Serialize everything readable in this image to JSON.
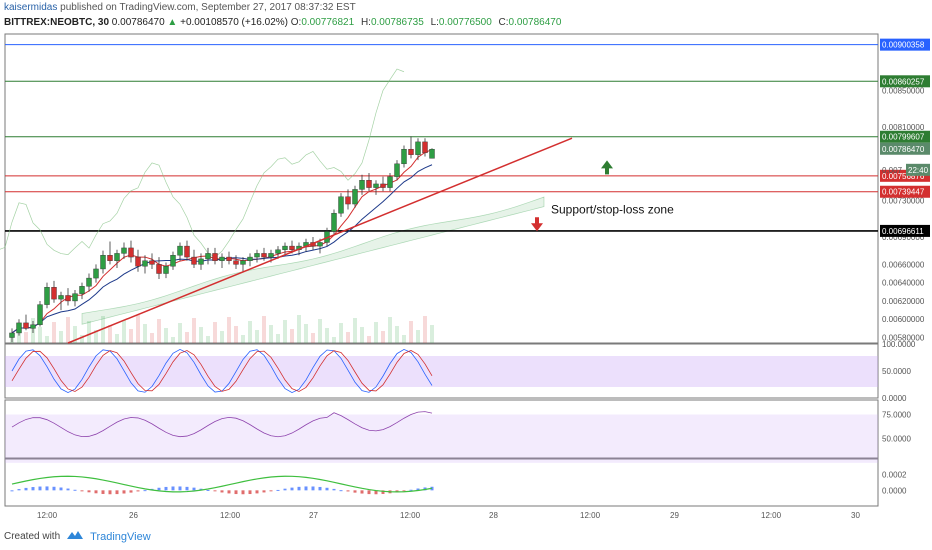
{
  "header": {
    "author": "kaisermidas",
    "published": "published on TradingView.com, September 27, 2017 08:37:32 EST",
    "symbol": "BITTREX:NEOBTC, 30",
    "last": "0.00786470",
    "change_arrow": "▲",
    "change": "+0.00108570 (+16.02%)",
    "o_label": "O:",
    "o": "0.00776821",
    "h_label": "H:",
    "h": "0.00786735",
    "l_label": "L:",
    "l": "0.00776500",
    "c_label": "C:",
    "c": "0.00786470"
  },
  "footer": {
    "created_with": "Created with",
    "brand": "TradingView"
  },
  "chart_data": {
    "type": "candlestick",
    "colors": {
      "up": "#2e9e44",
      "down": "#d32f2f",
      "accent": "#2962ff",
      "support_line": "#000000",
      "resistance_line": "#d32f2f",
      "target_line": "#2e7d32"
    },
    "price_axis": {
      "ylim": [
        0.00574,
        0.00912
      ],
      "ticks": [
        "0.00580000",
        "0.00600000",
        "0.00620000",
        "0.00640000",
        "0.00660000",
        "0.00690000",
        "0.00730000",
        "0.00810000",
        "0.00850000"
      ],
      "tick_values": [
        0.0058,
        0.006,
        0.0062,
        0.0064,
        0.0066,
        0.0069,
        0.0073,
        0.0081,
        0.0085
      ]
    },
    "x_axis": {
      "ticks": [
        "12:00",
        "26",
        "12:00",
        "27",
        "12:00",
        "28",
        "12:00",
        "29",
        "12:00",
        "30"
      ]
    },
    "horizontal_levels": [
      {
        "value": 0.00900358,
        "label": "0.00900358",
        "color": "#2962ff"
      },
      {
        "value": 0.00860257,
        "label": "0.00860257",
        "color": "#2e7d32"
      },
      {
        "value": 0.00799607,
        "label": "0.00799607",
        "color": "#2e7d32"
      },
      {
        "value": 0.00756876,
        "label": "0.00756876",
        "color": "#d32f2f"
      },
      {
        "value": 0.00739447,
        "label": "0.00739447",
        "color": "#d32f2f"
      },
      {
        "value": 0.00696611,
        "label": "0.00696611",
        "color": "#000000"
      }
    ],
    "last_price_tag": {
      "value": 0.0078647,
      "label": "0.00786470"
    },
    "countdown_tag": {
      "value": 0.0077,
      "prefix": "0.007",
      "timer": "22:40"
    },
    "trendline": {
      "from": {
        "x_index": 8,
        "y": 0.00574
      },
      "to": {
        "x_index": 80,
        "y": 0.00798
      }
    },
    "annotations": [
      {
        "text": "Support/stop-loss zone",
        "x_index": 77,
        "y": 0.0072
      },
      {
        "kind": "arrow-up",
        "color": "#2e7d32",
        "x_index": 85,
        "y": 0.00765
      },
      {
        "kind": "arrow-down",
        "color": "#d32f2f",
        "x_index": 75,
        "y": 0.00705
      }
    ],
    "candles": [
      [
        0.0058,
        0.0059,
        0.00575,
        0.00585
      ],
      [
        0.00585,
        0.006,
        0.00582,
        0.00596
      ],
      [
        0.00596,
        0.00605,
        0.00588,
        0.0059
      ],
      [
        0.0059,
        0.00598,
        0.00585,
        0.00594
      ],
      [
        0.00594,
        0.0062,
        0.00592,
        0.00616
      ],
      [
        0.00616,
        0.0064,
        0.00612,
        0.00635
      ],
      [
        0.00635,
        0.00642,
        0.00618,
        0.00622
      ],
      [
        0.00622,
        0.0063,
        0.0061,
        0.00626
      ],
      [
        0.00626,
        0.00634,
        0.00615,
        0.0062
      ],
      [
        0.0062,
        0.00632,
        0.00614,
        0.00628
      ],
      [
        0.00628,
        0.0064,
        0.00622,
        0.00636
      ],
      [
        0.00636,
        0.0065,
        0.0063,
        0.00645
      ],
      [
        0.00645,
        0.0066,
        0.0064,
        0.00655
      ],
      [
        0.00655,
        0.00675,
        0.0065,
        0.0067
      ],
      [
        0.0067,
        0.00685,
        0.0066,
        0.00664
      ],
      [
        0.00664,
        0.00676,
        0.00656,
        0.00672
      ],
      [
        0.00672,
        0.00684,
        0.00666,
        0.00678
      ],
      [
        0.00678,
        0.00686,
        0.00662,
        0.00668
      ],
      [
        0.00668,
        0.00676,
        0.00652,
        0.00658
      ],
      [
        0.00658,
        0.0067,
        0.0065,
        0.00664
      ],
      [
        0.00664,
        0.00672,
        0.00655,
        0.0066
      ],
      [
        0.0066,
        0.00668,
        0.00644,
        0.0065
      ],
      [
        0.0065,
        0.00662,
        0.00645,
        0.00658
      ],
      [
        0.00658,
        0.00674,
        0.00654,
        0.0067
      ],
      [
        0.0067,
        0.00684,
        0.00664,
        0.0068
      ],
      [
        0.0068,
        0.00686,
        0.00664,
        0.00668
      ],
      [
        0.00668,
        0.00676,
        0.00656,
        0.0066
      ],
      [
        0.0066,
        0.00672,
        0.00654,
        0.00666
      ],
      [
        0.00666,
        0.00678,
        0.0066,
        0.00672
      ],
      [
        0.00672,
        0.00678,
        0.0066,
        0.00664
      ],
      [
        0.00664,
        0.00672,
        0.00656,
        0.00668
      ],
      [
        0.00668,
        0.00674,
        0.0066,
        0.00664
      ],
      [
        0.00664,
        0.0067,
        0.00655,
        0.0066
      ],
      [
        0.0066,
        0.00668,
        0.00652,
        0.00664
      ],
      [
        0.00664,
        0.00672,
        0.00658,
        0.00668
      ],
      [
        0.00668,
        0.00676,
        0.00662,
        0.00672
      ],
      [
        0.00672,
        0.00678,
        0.00664,
        0.00668
      ],
      [
        0.00668,
        0.00676,
        0.00662,
        0.00672
      ],
      [
        0.00672,
        0.0068,
        0.00666,
        0.00676
      ],
      [
        0.00676,
        0.00684,
        0.0067,
        0.0068
      ],
      [
        0.0068,
        0.00686,
        0.00672,
        0.00676
      ],
      [
        0.00676,
        0.00684,
        0.0067,
        0.0068
      ],
      [
        0.0068,
        0.00688,
        0.00674,
        0.00684
      ],
      [
        0.00684,
        0.0069,
        0.00676,
        0.0068
      ],
      [
        0.0068,
        0.00688,
        0.00672,
        0.00684
      ],
      [
        0.00684,
        0.007,
        0.0068,
        0.00696
      ],
      [
        0.00696,
        0.0072,
        0.00692,
        0.00716
      ],
      [
        0.00716,
        0.00738,
        0.00712,
        0.00734
      ],
      [
        0.00734,
        0.00742,
        0.0072,
        0.00726
      ],
      [
        0.00726,
        0.00746,
        0.00722,
        0.00742
      ],
      [
        0.00742,
        0.00758,
        0.00736,
        0.00752
      ],
      [
        0.00752,
        0.0076,
        0.0074,
        0.00744
      ],
      [
        0.00744,
        0.00752,
        0.00736,
        0.00748
      ],
      [
        0.00748,
        0.00756,
        0.0074,
        0.00744
      ],
      [
        0.00744,
        0.0076,
        0.0074,
        0.00756
      ],
      [
        0.00756,
        0.00774,
        0.00752,
        0.0077
      ],
      [
        0.0077,
        0.0079,
        0.00766,
        0.00786
      ],
      [
        0.00786,
        0.008,
        0.00776,
        0.0078
      ],
      [
        0.0078,
        0.00798,
        0.00774,
        0.00794
      ],
      [
        0.00794,
        0.00798,
        0.00778,
        0.00782
      ],
      [
        0.00776,
        0.00787,
        0.00776,
        0.00786
      ]
    ],
    "indicator_panels": [
      {
        "name": "stochastic",
        "ticks": [
          "100.0000",
          "50.0000",
          "0.0000"
        ]
      },
      {
        "name": "rsi",
        "ticks": [
          "75.0000",
          "50.0000"
        ]
      },
      {
        "name": "momentum",
        "ticks": [
          "0.0002",
          "0.0000"
        ]
      }
    ]
  }
}
